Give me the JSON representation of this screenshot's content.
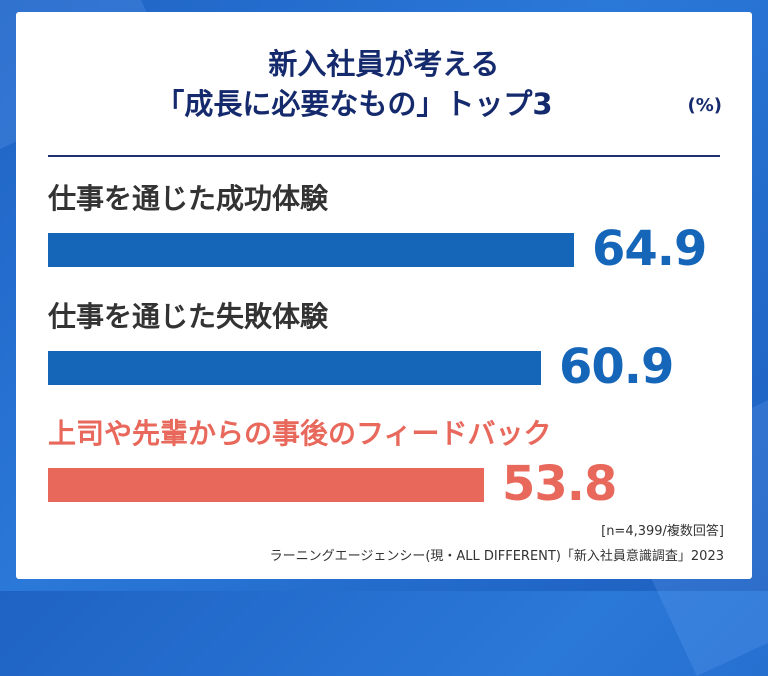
{
  "header": {
    "title_line1": "新入社員が考える",
    "title_line2": "「成長に必要なもの」トップ3",
    "unit": "(%)"
  },
  "chart_data": {
    "type": "bar",
    "orientation": "horizontal",
    "categories": [
      "仕事を通じた成功体験",
      "仕事を通じた失敗体験",
      "上司や先輩からの事後のフィードバック"
    ],
    "values": [
      64.9,
      60.9,
      53.8
    ],
    "value_labels": [
      "64.9",
      "60.9",
      "53.8"
    ],
    "xlim": [
      0,
      100
    ],
    "highlight_index": 2,
    "grid": false,
    "colors": {
      "bar": "#1565b8",
      "highlight": "#e8685c",
      "title": "#152a6d"
    }
  },
  "footer": {
    "sample": "[n=4,399/複数回答]",
    "source": "ラーニングエージェンシー(現・ALL DIFFERENT)「新入社員意識調査」2023"
  }
}
